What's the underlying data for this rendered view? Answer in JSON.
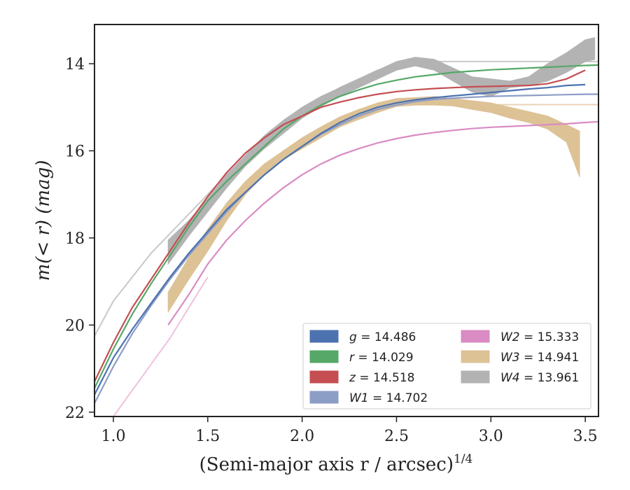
{
  "chart_data": {
    "type": "line",
    "xlabel": "(Semi-major axis r / arcsec)",
    "xlabel_sup": "1/4",
    "ylabel": "m(< r) (mag)",
    "xlim": [
      0.9,
      3.57
    ],
    "ylim": [
      22.1,
      13.1
    ],
    "y_inverted": true,
    "grid": false,
    "legend_position": "lower-right",
    "xticks": [
      1.0,
      1.5,
      2.0,
      2.5,
      3.0,
      3.5
    ],
    "xtick_labels": [
      "1.0",
      "1.5",
      "2.0",
      "2.5",
      "3.0",
      "3.5"
    ],
    "yticks": [
      14,
      16,
      18,
      20,
      22
    ],
    "ytick_labels": [
      "14",
      "16",
      "18",
      "20",
      "22"
    ],
    "series": [
      {
        "name": "g = 14.486",
        "var": "g",
        "value": "14.486",
        "color": "#4C72B0",
        "style": "line",
        "x": [
          0.9,
          1.0,
          1.1,
          1.2,
          1.3,
          1.4,
          1.5,
          1.6,
          1.7,
          1.8,
          1.9,
          2.0,
          2.1,
          2.2,
          2.3,
          2.4,
          2.5,
          2.6,
          2.7,
          2.8,
          2.9,
          3.0,
          3.1,
          3.2,
          3.3,
          3.4,
          3.5
        ],
        "y": [
          21.6,
          20.75,
          20.1,
          19.5,
          18.9,
          18.35,
          17.85,
          17.35,
          16.95,
          16.55,
          16.2,
          15.9,
          15.6,
          15.35,
          15.15,
          15.0,
          14.9,
          14.83,
          14.78,
          14.74,
          14.7,
          14.66,
          14.62,
          14.58,
          14.55,
          14.5,
          14.48
        ]
      },
      {
        "name": "r = 14.029",
        "var": "r",
        "value": "14.029",
        "color": "#55A868",
        "style": "line",
        "x": [
          0.9,
          1.0,
          1.1,
          1.2,
          1.3,
          1.4,
          1.5,
          1.6,
          1.7,
          1.8,
          1.9,
          2.0,
          2.1,
          2.2,
          2.3,
          2.4,
          2.5,
          2.6,
          2.7,
          2.8,
          2.9,
          3.0,
          3.1,
          3.2,
          3.3,
          3.4,
          3.5,
          3.57
        ],
        "y": [
          21.45,
          20.55,
          19.75,
          19.05,
          18.4,
          17.75,
          17.15,
          16.7,
          16.3,
          15.9,
          15.5,
          15.2,
          14.95,
          14.75,
          14.6,
          14.47,
          14.38,
          14.3,
          14.25,
          14.2,
          14.17,
          14.14,
          14.12,
          14.1,
          14.08,
          14.06,
          14.04,
          14.03
        ]
      },
      {
        "name": "z = 14.518",
        "var": "z",
        "value": "14.518",
        "color": "#C44E52",
        "style": "line",
        "x": [
          0.9,
          1.0,
          1.1,
          1.2,
          1.3,
          1.4,
          1.5,
          1.6,
          1.7,
          1.8,
          1.9,
          2.0,
          2.1,
          2.2,
          2.3,
          2.4,
          2.5,
          2.6,
          2.7,
          2.8,
          2.9,
          3.0,
          3.1,
          3.2,
          3.3,
          3.4,
          3.5
        ],
        "y": [
          21.3,
          20.4,
          19.6,
          18.95,
          18.3,
          17.65,
          17.05,
          16.5,
          16.05,
          15.7,
          15.4,
          15.2,
          15.0,
          14.88,
          14.78,
          14.7,
          14.64,
          14.6,
          14.57,
          14.55,
          14.53,
          14.52,
          14.51,
          14.5,
          14.46,
          14.35,
          14.15
        ]
      },
      {
        "name": "W1 = 14.702",
        "var": "W1",
        "value": "14.702",
        "color": "#8C9DC6",
        "style": "line",
        "x": [
          0.9,
          1.0,
          1.1,
          1.2,
          1.3,
          1.4,
          1.5,
          1.6,
          1.7,
          1.8,
          1.9,
          2.0,
          2.1,
          2.2,
          2.3,
          2.4,
          2.5,
          2.6,
          2.7,
          2.8,
          2.9,
          3.0,
          3.1,
          3.2,
          3.3,
          3.4,
          3.5,
          3.57
        ],
        "y": [
          21.8,
          20.95,
          20.2,
          19.55,
          18.95,
          18.4,
          17.9,
          17.4,
          16.95,
          16.55,
          16.2,
          15.9,
          15.62,
          15.4,
          15.2,
          15.05,
          14.95,
          14.87,
          14.82,
          14.79,
          14.77,
          14.75,
          14.74,
          14.73,
          14.72,
          14.71,
          14.7,
          14.7
        ]
      },
      {
        "name": "W2 = 15.333",
        "var": "W2",
        "value": "15.333",
        "color": "#DA8BC3",
        "style": "line",
        "x": [
          1.29,
          1.4,
          1.5,
          1.6,
          1.7,
          1.8,
          1.9,
          2.0,
          2.1,
          2.2,
          2.3,
          2.4,
          2.5,
          2.6,
          2.7,
          2.8,
          2.9,
          3.0,
          3.1,
          3.2,
          3.3,
          3.4,
          3.5,
          3.57
        ],
        "y": [
          20.0,
          19.3,
          18.6,
          18.05,
          17.6,
          17.2,
          16.85,
          16.55,
          16.3,
          16.1,
          15.95,
          15.82,
          15.72,
          15.64,
          15.58,
          15.53,
          15.49,
          15.46,
          15.44,
          15.42,
          15.4,
          15.38,
          15.35,
          15.33
        ]
      },
      {
        "name": "W3 = 14.941",
        "var": "W3",
        "value": "14.941",
        "color": "#DDC296",
        "style": "band",
        "x": [
          1.29,
          1.4,
          1.5,
          1.6,
          1.7,
          1.8,
          1.9,
          2.0,
          2.1,
          2.2,
          2.3,
          2.4,
          2.5,
          2.6,
          2.7,
          2.8,
          2.9,
          3.0,
          3.1,
          3.2,
          3.3,
          3.4,
          3.47
        ],
        "y_low": [
          19.25,
          18.45,
          17.8,
          17.2,
          16.7,
          16.3,
          16.0,
          15.7,
          15.45,
          15.22,
          15.05,
          14.9,
          14.8,
          14.78,
          14.75,
          14.8,
          14.85,
          14.9,
          15.0,
          15.1,
          15.2,
          15.4,
          15.55
        ],
        "y_high": [
          19.7,
          18.95,
          18.3,
          17.6,
          17.0,
          16.55,
          16.2,
          15.95,
          15.7,
          15.45,
          15.28,
          15.12,
          14.98,
          14.95,
          14.95,
          14.97,
          15.05,
          15.12,
          15.25,
          15.35,
          15.5,
          15.8,
          16.6
        ]
      },
      {
        "name": "W4 = 13.961",
        "var": "W4",
        "value": "13.961",
        "color": "#B3B3B3",
        "style": "band",
        "x": [
          1.29,
          1.4,
          1.5,
          1.6,
          1.7,
          1.8,
          1.9,
          2.0,
          2.1,
          2.2,
          2.3,
          2.4,
          2.5,
          2.6,
          2.7,
          2.8,
          2.9,
          3.0,
          3.1,
          3.2,
          3.3,
          3.4,
          3.5,
          3.55
        ],
        "y_low": [
          18.05,
          17.6,
          17.1,
          16.55,
          16.1,
          15.65,
          15.3,
          15.0,
          14.75,
          14.55,
          14.35,
          14.15,
          13.95,
          13.85,
          13.9,
          14.1,
          14.3,
          14.35,
          14.4,
          14.3,
          14.0,
          13.75,
          13.45,
          13.4
        ]
      },
      {
        "name": "",
        "var": "",
        "value": "",
        "color": "#B3B3B3",
        "style": "band-upper",
        "x": [
          1.29,
          1.4,
          1.5,
          1.6,
          1.7,
          1.8,
          1.9,
          2.0,
          2.1,
          2.2,
          2.3,
          2.4,
          2.5,
          2.6,
          2.7,
          2.8,
          2.9,
          3.0,
          3.1,
          3.2,
          3.3,
          3.4,
          3.5,
          3.55
        ],
        "y": [
          18.6,
          17.95,
          17.4,
          16.85,
          16.35,
          15.95,
          15.6,
          15.25,
          14.98,
          14.75,
          14.55,
          14.35,
          14.15,
          14.05,
          14.15,
          14.4,
          14.65,
          14.75,
          14.55,
          14.5,
          14.4,
          14.2,
          13.95,
          13.9
        ]
      }
    ],
    "reference_curves": [
      {
        "color": "#C9C9C9",
        "x": [
          0.9,
          1.0,
          1.1,
          1.2,
          1.3,
          1.4,
          1.5,
          1.6,
          1.7,
          1.8,
          1.9,
          2.0,
          2.1,
          2.2,
          2.3,
          2.4,
          2.5,
          2.6,
          2.7,
          2.8,
          2.9,
          3.0,
          3.57
        ],
        "y": [
          20.25,
          19.45,
          18.9,
          18.35,
          17.9,
          17.45,
          17.0,
          16.55,
          16.15,
          15.75,
          15.4,
          15.1,
          14.8,
          14.55,
          14.35,
          14.15,
          14.02,
          13.96,
          13.95,
          13.95,
          13.95,
          13.95,
          13.95
        ]
      },
      {
        "color": "#F0C0DD",
        "x": [
          1.0,
          1.1,
          1.2,
          1.3,
          1.4,
          1.5
        ],
        "y": [
          22.1,
          21.5,
          20.9,
          20.3,
          19.6,
          18.9
        ]
      },
      {
        "color": "#E8D3B5",
        "x": [
          2.9,
          3.0,
          3.57
        ],
        "y": [
          14.94,
          14.94,
          14.94
        ]
      }
    ]
  }
}
